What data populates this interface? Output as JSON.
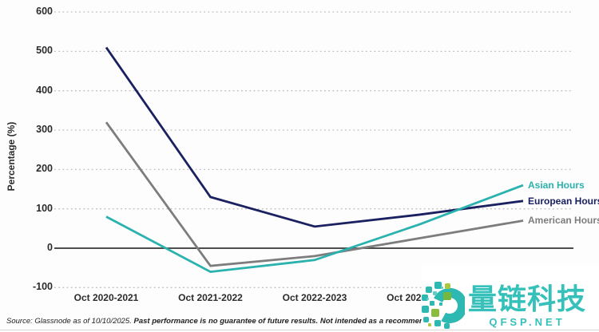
{
  "chart_data": {
    "type": "line",
    "title": "",
    "xlabel": "",
    "ylabel": "Percentage (%)",
    "ylim": [
      -100,
      600
    ],
    "yticks": [
      600,
      500,
      400,
      300,
      200,
      100,
      0,
      -100
    ],
    "categories": [
      "Oct 2020-2021",
      "Oct 2021-2022",
      "Oct 2022-2023",
      "Oct 2023-2024",
      ""
    ],
    "series": [
      {
        "name": "Asian Hours",
        "color": "#29b2ae",
        "values": [
          80,
          -60,
          -30,
          60,
          160
        ]
      },
      {
        "name": "European Hours",
        "color": "#1a2060",
        "values": [
          510,
          130,
          55,
          85,
          120
        ]
      },
      {
        "name": "American Hours",
        "color": "#7d7d7d",
        "values": [
          320,
          -45,
          -20,
          25,
          70
        ]
      }
    ],
    "grid": "horizontal-dotted",
    "legend_position": "labels-at-right-line-ends"
  },
  "footer": {
    "source_prefix": "Source: Glassnode as of 10/10/2025.",
    "disclaimer": "Past performance is no guarantee of future results. Not intended as a recommendation to buy or sell any se"
  },
  "watermark": {
    "brand": "量链科技",
    "site": "QFSP.NET",
    "teal": "#35c0ba",
    "green": "#7fba3e"
  },
  "colors": {
    "background": "#fdfdfd",
    "gridline": "#bfbfbf",
    "zero_line": "#4d4d4d",
    "tick_text": "#2b2b2b"
  }
}
